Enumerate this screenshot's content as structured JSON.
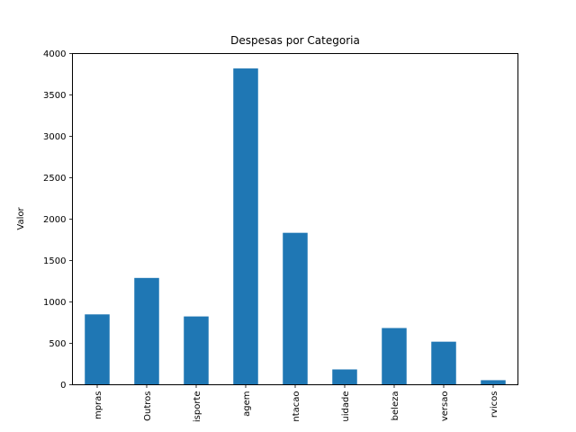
{
  "chart_data": {
    "type": "bar",
    "title": "Despesas por Categoria",
    "xlabel": "",
    "ylabel": "Valor",
    "categories": [
      "mpras",
      "Outros",
      "isporte",
      "agem",
      "ntacao",
      "uidade",
      "beleza",
      "versao",
      "rvicos"
    ],
    "values": [
      850,
      1290,
      825,
      3820,
      1835,
      185,
      685,
      520,
      55
    ],
    "ylim": [
      0,
      4000
    ],
    "yticks": [
      0,
      500,
      1000,
      1500,
      2000,
      2500,
      3000,
      3500,
      4000
    ],
    "bar_color": "#1f77b4",
    "grid": false,
    "legend": "none"
  }
}
